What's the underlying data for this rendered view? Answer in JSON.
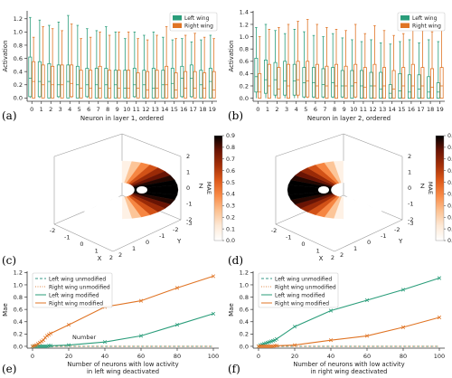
{
  "colors": {
    "left": "#2a9d7a",
    "right": "#e07424",
    "axis": "#333333",
    "unmod_left": "#3a9a8a",
    "unmod_right": "#e08a4a",
    "colorbar": [
      "#ffffff",
      "#fde9d6",
      "#fcc191",
      "#f98b47",
      "#de5a1a",
      "#a53008",
      "#6b1404",
      "#000000"
    ]
  },
  "panels": {
    "a": "(a)",
    "b": "(b)",
    "c": "(c)",
    "d": "(d)",
    "e": "(e)",
    "f": "(f)"
  },
  "chart_data": [
    {
      "id": "a",
      "type": "box",
      "xlabel": "Neuron in layer 1, ordered",
      "ylabel": "Activation",
      "ylim": [
        -0.05,
        1.32
      ],
      "yticks": [
        "0.0",
        "0.2",
        "0.4",
        "0.6",
        "0.8",
        "1.0",
        "1.2"
      ],
      "categories": [
        "0",
        "1",
        "2",
        "3",
        "4",
        "5",
        "6",
        "7",
        "8",
        "9",
        "10",
        "11",
        "12",
        "13",
        "14",
        "15",
        "16",
        "17",
        "18",
        "19"
      ],
      "legend": {
        "position": "top-right",
        "entries": [
          "Left wing",
          "Right wing"
        ]
      },
      "series": [
        {
          "name": "Left wing",
          "whisker_high": [
            1.22,
            1.18,
            1.1,
            1.15,
            1.25,
            1.1,
            1.05,
            1.02,
            1.08,
            1.0,
            0.9,
            1.0,
            0.95,
            1.0,
            0.92,
            0.88,
            0.9,
            0.85,
            0.88,
            0.95
          ],
          "q3": [
            0.62,
            0.55,
            0.52,
            0.5,
            0.5,
            0.48,
            0.45,
            0.45,
            0.45,
            0.42,
            0.42,
            0.45,
            0.42,
            0.45,
            0.42,
            0.45,
            0.48,
            0.5,
            0.42,
            0.45
          ],
          "median": [
            0.3,
            0.25,
            0.25,
            0.2,
            0.25,
            0.2,
            0.2,
            0.2,
            0.2,
            0.2,
            0.15,
            0.2,
            0.2,
            0.15,
            0.2,
            0.22,
            0.3,
            0.3,
            0.2,
            0.25
          ],
          "q1": [
            0.02,
            0.02,
            0.0,
            0.02,
            0.0,
            0.0,
            0.02,
            0.0,
            0.0,
            0.0,
            0.0,
            0.02,
            0.0,
            0.0,
            0.0,
            0.0,
            0.02,
            0.02,
            0.0,
            0.0
          ],
          "whisker_low": [
            0.0,
            0.0,
            0.0,
            0.0,
            0.0,
            0.0,
            0.0,
            0.0,
            0.0,
            0.0,
            0.0,
            0.0,
            0.0,
            0.0,
            0.0,
            0.0,
            0.0,
            0.0,
            0.0,
            0.0
          ]
        },
        {
          "name": "Right wing",
          "whisker_high": [
            0.92,
            1.08,
            1.05,
            1.02,
            1.12,
            0.9,
            0.92,
            1.0,
            0.95,
            1.0,
            1.0,
            0.9,
            0.88,
            0.95,
            1.08,
            0.9,
            0.95,
            0.98,
            0.92,
            0.9
          ],
          "q3": [
            0.55,
            0.5,
            0.48,
            0.5,
            0.5,
            0.42,
            0.42,
            0.48,
            0.42,
            0.42,
            0.42,
            0.38,
            0.4,
            0.42,
            0.48,
            0.38,
            0.4,
            0.4,
            0.38,
            0.4
          ],
          "median": [
            0.25,
            0.2,
            0.2,
            0.2,
            0.22,
            0.15,
            0.15,
            0.15,
            0.15,
            0.15,
            0.15,
            0.15,
            0.12,
            0.15,
            0.2,
            0.12,
            0.15,
            0.15,
            0.15,
            0.12
          ],
          "q1": [
            0.0,
            0.0,
            0.0,
            0.0,
            0.02,
            0.0,
            0.0,
            0.0,
            0.0,
            0.0,
            0.0,
            0.0,
            0.0,
            0.0,
            0.0,
            0.0,
            0.0,
            0.0,
            0.0,
            0.0
          ],
          "whisker_low": [
            0.0,
            0.0,
            0.0,
            0.0,
            0.0,
            0.0,
            0.0,
            0.0,
            0.0,
            0.0,
            0.0,
            0.0,
            0.0,
            0.0,
            0.0,
            0.0,
            0.0,
            0.0,
            0.0,
            0.0
          ]
        }
      ]
    },
    {
      "id": "b",
      "type": "box",
      "xlabel": "Neuron in layer 2, ordered",
      "ylabel": "Activation",
      "ylim": [
        -0.05,
        1.42
      ],
      "yticks": [
        "0.0",
        "0.2",
        "0.4",
        "0.6",
        "0.8",
        "1.0",
        "1.2",
        "1.4"
      ],
      "categories": [
        "0",
        "1",
        "2",
        "3",
        "4",
        "5",
        "6",
        "7",
        "8",
        "9",
        "10",
        "11",
        "12",
        "13",
        "14",
        "15",
        "16",
        "17",
        "18",
        "19"
      ],
      "legend": {
        "position": "top-right",
        "entries": [
          "Left wing",
          "Right wing"
        ]
      },
      "series": [
        {
          "name": "Left wing",
          "whisker_high": [
            1.15,
            1.2,
            1.1,
            1.05,
            1.12,
            1.08,
            1.02,
            1.0,
            1.05,
            0.98,
            0.95,
            0.92,
            0.95,
            0.9,
            0.88,
            0.92,
            0.95,
            0.9,
            0.95,
            0.92
          ],
          "q3": [
            0.65,
            0.62,
            0.58,
            0.6,
            0.55,
            0.5,
            0.5,
            0.48,
            0.5,
            0.45,
            0.45,
            0.45,
            0.42,
            0.42,
            0.22,
            0.4,
            0.38,
            0.38,
            0.35,
            0.25
          ],
          "median": [
            0.35,
            0.3,
            0.3,
            0.28,
            0.28,
            0.25,
            0.25,
            0.22,
            0.25,
            0.2,
            0.2,
            0.2,
            0.2,
            0.15,
            0.08,
            0.12,
            0.1,
            0.15,
            0.1,
            0.1
          ],
          "q1": [
            0.1,
            0.08,
            0.05,
            0.05,
            0.05,
            0.02,
            0.02,
            0.02,
            0.02,
            0.02,
            0.0,
            0.0,
            0.0,
            0.0,
            0.0,
            0.0,
            0.0,
            0.0,
            0.0,
            0.0
          ],
          "whisker_low": [
            0.0,
            0.0,
            0.0,
            0.0,
            0.0,
            0.0,
            0.0,
            0.0,
            0.0,
            0.0,
            0.0,
            0.0,
            0.0,
            0.0,
            0.0,
            0.0,
            0.0,
            0.0,
            0.0,
            0.0
          ]
        },
        {
          "name": "Right wing",
          "whisker_high": [
            1.0,
            1.12,
            1.15,
            1.2,
            1.25,
            1.28,
            1.2,
            1.15,
            1.12,
            1.1,
            1.2,
            1.05,
            1.18,
            1.1,
            1.02,
            1.05,
            1.18,
            1.1,
            1.08,
            1.15
          ],
          "q3": [
            0.4,
            0.55,
            0.5,
            0.55,
            0.6,
            0.6,
            0.55,
            0.52,
            0.55,
            0.52,
            0.55,
            0.5,
            0.55,
            0.5,
            0.45,
            0.5,
            0.55,
            0.5,
            0.48,
            0.5
          ],
          "median": [
            0.1,
            0.2,
            0.15,
            0.2,
            0.3,
            0.28,
            0.2,
            0.2,
            0.2,
            0.2,
            0.25,
            0.18,
            0.2,
            0.2,
            0.15,
            0.2,
            0.2,
            0.2,
            0.18,
            0.2
          ],
          "q1": [
            0.0,
            0.0,
            0.0,
            0.0,
            0.05,
            0.02,
            0.0,
            0.0,
            0.0,
            0.0,
            0.02,
            0.0,
            0.0,
            0.0,
            0.0,
            0.0,
            0.0,
            0.0,
            0.0,
            0.0
          ],
          "whisker_low": [
            0.0,
            0.0,
            0.0,
            0.0,
            0.0,
            0.0,
            0.0,
            0.0,
            0.0,
            0.0,
            0.0,
            0.0,
            0.0,
            0.0,
            0.0,
            0.0,
            0.0,
            0.0,
            0.0,
            0.0
          ]
        }
      ]
    },
    {
      "id": "c",
      "type": "3d-surface",
      "xlabel": "X",
      "ylabel": "Y",
      "zlabel": "Z",
      "x_ticks": [
        "-2",
        "-1",
        "0",
        "1",
        "2"
      ],
      "y_ticks": [
        "-3",
        "-2",
        "-1",
        "0",
        "1",
        "2"
      ],
      "z_ticks": [
        "-2",
        "-1",
        "0",
        "1",
        "2"
      ],
      "colorbar_label": "MAE",
      "colorbar_ticks": [
        "0.0",
        "0.1",
        "0.2",
        "0.3",
        "0.4",
        "0.5",
        "0.6",
        "0.7",
        "0.8",
        "0.9"
      ],
      "colorbar_range": [
        0.0,
        0.9
      ],
      "dark_side": "right"
    },
    {
      "id": "d",
      "type": "3d-surface",
      "xlabel": "X",
      "ylabel": "Y",
      "zlabel": "Z",
      "x_ticks": [
        "-2",
        "-1",
        "0",
        "1",
        "2"
      ],
      "y_ticks": [
        "-3",
        "-2",
        "-1",
        "0",
        "1",
        "2"
      ],
      "z_ticks": [
        "-2",
        "-1",
        "0",
        "1",
        "2"
      ],
      "colorbar_label": "MAE",
      "colorbar_ticks": [
        "0.0",
        "0.1",
        "0.2",
        "0.3",
        "0.4",
        "0.5",
        "0.6",
        "0.7",
        "0.8",
        "0.9"
      ],
      "colorbar_range": [
        0.0,
        0.9
      ],
      "dark_side": "left"
    },
    {
      "id": "e",
      "type": "line",
      "xlabel": "Number of neurons with low activity\nin left wing deactivated",
      "ylabel": "Mae",
      "xlim": [
        -3,
        103
      ],
      "ylim": [
        -0.03,
        1.22
      ],
      "xticks": [
        "0",
        "20",
        "40",
        "60",
        "80",
        "100"
      ],
      "yticks": [
        "0.0",
        "0.2",
        "0.4",
        "0.6",
        "0.8",
        "1.0",
        "1.2"
      ],
      "legend": {
        "position": "top-left",
        "entries": [
          "Left wing unmodified",
          "Right wing unmodified",
          "Left wing modified",
          "Right wing modified"
        ]
      },
      "annotation": {
        "text": "Number",
        "x": 22,
        "y": 0.12
      },
      "x": [
        0,
        1,
        2,
        3,
        4,
        5,
        6,
        7,
        8,
        9,
        10,
        20,
        40,
        60,
        80,
        100
      ],
      "series": [
        {
          "name": "Left wing unmodified",
          "style": "dashed",
          "color_key": "unmod_left",
          "values": [
            0.0,
            0.0,
            0.0,
            0.0,
            0.0,
            0.0,
            0.0,
            0.0,
            0.0,
            0.0,
            0.0,
            0.0,
            0.0,
            0.0,
            0.0,
            0.0
          ]
        },
        {
          "name": "Right wing unmodified",
          "style": "dotted",
          "color_key": "unmod_right",
          "values": [
            0.0,
            0.0,
            0.0,
            0.0,
            0.0,
            0.0,
            0.0,
            0.0,
            0.0,
            0.0,
            0.0,
            0.0,
            0.0,
            0.0,
            0.0,
            0.0
          ]
        },
        {
          "name": "Left wing modified",
          "style": "solid",
          "color_key": "left",
          "values": [
            0.0,
            0.0,
            0.0,
            0.0,
            0.0,
            0.0,
            0.0,
            0.0,
            0.0,
            0.01,
            0.01,
            0.02,
            0.07,
            0.17,
            0.35,
            0.53
          ]
        },
        {
          "name": "Right wing modified",
          "style": "solid",
          "color_key": "right",
          "values": [
            0.0,
            0.01,
            0.02,
            0.04,
            0.06,
            0.08,
            0.1,
            0.14,
            0.17,
            0.19,
            0.21,
            0.35,
            0.64,
            0.74,
            0.95,
            1.14
          ]
        }
      ]
    },
    {
      "id": "f",
      "type": "line",
      "xlabel": "Number of neurons with low activity\nin right wing deactivated",
      "ylabel": "Mae",
      "xlim": [
        -3,
        103
      ],
      "ylim": [
        -0.03,
        1.22
      ],
      "xticks": [
        "0",
        "20",
        "40",
        "60",
        "80",
        "100"
      ],
      "yticks": [
        "0.0",
        "0.2",
        "0.4",
        "0.6",
        "0.8",
        "1.0",
        "1.2"
      ],
      "legend": {
        "position": "top-left",
        "entries": [
          "Left wing unmodified",
          "Right wing unmodified",
          "Left wing modified",
          "Right wing modified"
        ]
      },
      "x": [
        0,
        1,
        2,
        3,
        4,
        5,
        6,
        7,
        8,
        9,
        10,
        20,
        40,
        60,
        80,
        100
      ],
      "series": [
        {
          "name": "Left wing unmodified",
          "style": "dashed",
          "color_key": "unmod_left",
          "values": [
            0.0,
            0.0,
            0.0,
            0.0,
            0.0,
            0.0,
            0.0,
            0.0,
            0.0,
            0.0,
            0.0,
            0.0,
            0.0,
            0.0,
            0.0,
            0.0
          ]
        },
        {
          "name": "Right wing unmodified",
          "style": "dotted",
          "color_key": "unmod_right",
          "values": [
            0.0,
            0.0,
            0.0,
            0.0,
            0.0,
            0.0,
            0.0,
            0.0,
            0.0,
            0.0,
            0.0,
            0.0,
            0.0,
            0.0,
            0.0,
            0.0
          ]
        },
        {
          "name": "Left wing modified",
          "style": "solid",
          "color_key": "left",
          "values": [
            0.0,
            0.02,
            0.03,
            0.04,
            0.05,
            0.06,
            0.07,
            0.08,
            0.09,
            0.1,
            0.12,
            0.32,
            0.58,
            0.75,
            0.92,
            1.11
          ]
        },
        {
          "name": "Right wing modified",
          "style": "solid",
          "color_key": "right",
          "values": [
            0.0,
            0.0,
            0.0,
            0.0,
            0.0,
            0.0,
            0.0,
            0.0,
            0.0,
            0.01,
            0.01,
            0.02,
            0.1,
            0.17,
            0.31,
            0.47
          ]
        }
      ]
    }
  ]
}
